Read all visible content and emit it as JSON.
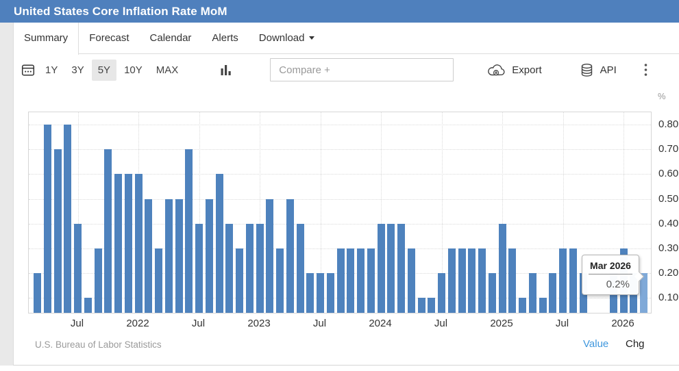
{
  "header": {
    "title": "United States Core Inflation Rate MoM"
  },
  "tabs": [
    {
      "label": "Summary",
      "active": true
    },
    {
      "label": "Forecast",
      "active": false
    },
    {
      "label": "Calendar",
      "active": false
    },
    {
      "label": "Alerts",
      "active": false
    },
    {
      "label": "Download",
      "active": false,
      "has_caret": true
    }
  ],
  "toolbar": {
    "ranges": [
      {
        "label": "1Y",
        "active": false
      },
      {
        "label": "3Y",
        "active": false
      },
      {
        "label": "5Y",
        "active": true
      },
      {
        "label": "10Y",
        "active": false
      },
      {
        "label": "MAX",
        "active": false
      }
    ],
    "compare_placeholder": "Compare +",
    "export_label": "Export",
    "api_label": "API",
    "icons": [
      "calendar-icon",
      "bar-chart-icon",
      "cloud-download-icon",
      "database-icon",
      "kebab-menu-icon"
    ]
  },
  "chart_data": {
    "type": "bar",
    "title": "United States Core Inflation Rate MoM",
    "ylabel": "%",
    "ylim": [
      0.04,
      0.85
    ],
    "yticks": [
      0.1,
      0.2,
      0.3,
      0.4,
      0.5,
      0.6,
      0.7,
      0.8
    ],
    "ytick_labels": [
      "0.10",
      "0.20",
      "0.30",
      "0.40",
      "0.50",
      "0.60",
      "0.70",
      "0.80"
    ],
    "grid": "dotted",
    "legend_position": "none",
    "categories": [
      "Mar 2021",
      "Apr 2021",
      "May 2021",
      "Jun 2021",
      "Jul 2021",
      "Aug 2021",
      "Sep 2021",
      "Oct 2021",
      "Nov 2021",
      "Dec 2021",
      "Jan 2022",
      "Feb 2022",
      "Mar 2022",
      "Apr 2022",
      "May 2022",
      "Jun 2022",
      "Jul 2022",
      "Aug 2022",
      "Sep 2022",
      "Oct 2022",
      "Nov 2022",
      "Dec 2022",
      "Jan 2023",
      "Feb 2023",
      "Mar 2023",
      "Apr 2023",
      "May 2023",
      "Jun 2023",
      "Jul 2023",
      "Aug 2023",
      "Sep 2023",
      "Oct 2023",
      "Nov 2023",
      "Dec 2023",
      "Jan 2024",
      "Feb 2024",
      "Mar 2024",
      "Apr 2024",
      "May 2024",
      "Jun 2024",
      "Jul 2024",
      "Aug 2024",
      "Sep 2024",
      "Oct 2024",
      "Nov 2024",
      "Dec 2024",
      "Jan 2025",
      "Feb 2025",
      "Mar 2025",
      "Apr 2025",
      "May 2025",
      "Jun 2025",
      "Jul 2025",
      "Aug 2025",
      "Sep 2025",
      "Oct 2025",
      "Nov 2025",
      "Dec 2025",
      "Jan 2026",
      "Feb 2026",
      "Mar 2026"
    ],
    "values": [
      0.2,
      0.8,
      0.7,
      0.8,
      0.4,
      0.1,
      0.3,
      0.7,
      0.6,
      0.6,
      0.6,
      0.5,
      0.3,
      0.5,
      0.5,
      0.7,
      0.4,
      0.5,
      0.6,
      0.4,
      0.3,
      0.4,
      0.4,
      0.5,
      0.3,
      0.5,
      0.4,
      0.2,
      0.2,
      0.2,
      0.3,
      0.3,
      0.3,
      0.3,
      0.4,
      0.4,
      0.4,
      0.3,
      0.1,
      0.1,
      0.2,
      0.3,
      0.3,
      0.3,
      0.3,
      0.2,
      0.4,
      0.3,
      0.1,
      0.2,
      0.1,
      0.2,
      0.3,
      0.3,
      0.2,
      null,
      null,
      0.2,
      0.3,
      0.2,
      0.2
    ],
    "xticks": [
      {
        "index": 4,
        "label": "Jul"
      },
      {
        "index": 10,
        "label": "2022"
      },
      {
        "index": 16,
        "label": "Jul"
      },
      {
        "index": 22,
        "label": "2023"
      },
      {
        "index": 28,
        "label": "Jul"
      },
      {
        "index": 34,
        "label": "2024"
      },
      {
        "index": 40,
        "label": "Jul"
      },
      {
        "index": 46,
        "label": "2025"
      },
      {
        "index": 52,
        "label": "Jul"
      },
      {
        "index": 58,
        "label": "2026"
      }
    ],
    "bar_color": "#4e82bd",
    "highlight": {
      "index": 60,
      "color": "#7fa9d8"
    }
  },
  "tooltip": {
    "title": "Mar 2026",
    "value": "0.2%"
  },
  "footer": {
    "source": "U.S. Bureau of Labor Statistics",
    "links": [
      {
        "label": "Value",
        "active": true,
        "color": "#3f97dd"
      },
      {
        "label": "Chg",
        "active": false,
        "color": "#222222"
      }
    ]
  },
  "colors": {
    "header_bg": "#4f80bd",
    "bar": "#4e82bd",
    "bar_highlight": "#7fa9d8",
    "grid": "#dadada",
    "range_active_bg": "#e7e7e7"
  }
}
